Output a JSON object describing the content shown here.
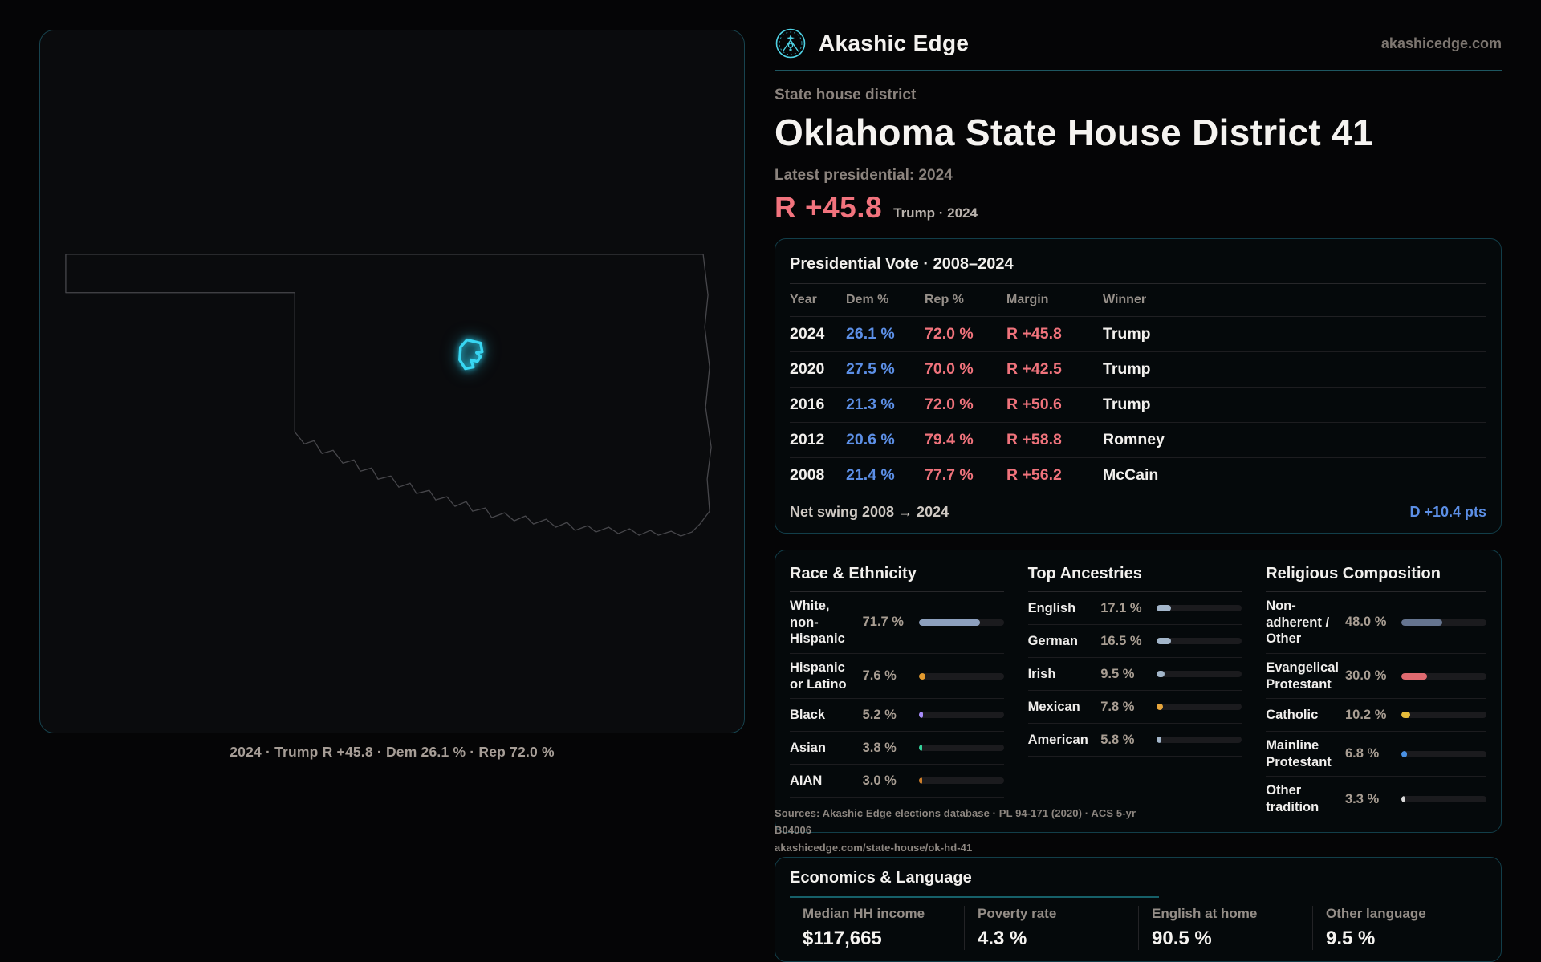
{
  "brand": {
    "name": "Akashic Edge",
    "domain": "akashicedge.com"
  },
  "header": {
    "kicker": "State house district",
    "title": "Oklahoma State House District 41",
    "latest": "Latest presidential: 2024",
    "margin": "R +45.8",
    "margin_detail": "Trump · 2024"
  },
  "map": {
    "caption": "2024 · Trump R +45.8 · Dem 26.1 % · Rep 72.0 %"
  },
  "vote_table": {
    "title": "Presidential Vote · 2008–2024",
    "columns": [
      "Year",
      "Dem %",
      "Rep %",
      "Margin",
      "Winner"
    ],
    "rows": [
      {
        "year": "2024",
        "dem": "26.1 %",
        "rep": "72.0 %",
        "margin": "R +45.8",
        "winner": "Trump"
      },
      {
        "year": "2020",
        "dem": "27.5 %",
        "rep": "70.0 %",
        "margin": "R +42.5",
        "winner": "Trump"
      },
      {
        "year": "2016",
        "dem": "21.3 %",
        "rep": "72.0 %",
        "margin": "R +50.6",
        "winner": "Trump"
      },
      {
        "year": "2012",
        "dem": "20.6 %",
        "rep": "79.4 %",
        "margin": "R +58.8",
        "winner": "Romney"
      },
      {
        "year": "2008",
        "dem": "21.4 %",
        "rep": "77.7 %",
        "margin": "R +56.2",
        "winner": "McCain"
      }
    ],
    "net_swing_label": "Net swing 2008 → 2024",
    "net_swing_value": "D +10.4 pts"
  },
  "demographics": [
    {
      "id": "race",
      "title": "Race & Ethnicity",
      "rows": [
        {
          "label": "White, non-Hispanic",
          "value": "71.7 %",
          "pct": 71.7,
          "color": "#8da0be"
        },
        {
          "label": "Hispanic or Latino",
          "value": "7.6 %",
          "pct": 7.6,
          "color": "#e39a2e"
        },
        {
          "label": "Black",
          "value": "5.2 %",
          "pct": 5.2,
          "color": "#a78bfa"
        },
        {
          "label": "Asian",
          "value": "3.8 %",
          "pct": 3.8,
          "color": "#34d39b"
        },
        {
          "label": "AIAN",
          "value": "3.0 %",
          "pct": 3.0,
          "color": "#cf7f2a"
        }
      ]
    },
    {
      "id": "ancestries",
      "title": "Top Ancestries",
      "rows": [
        {
          "label": "English",
          "value": "17.1 %",
          "pct": 17.1,
          "color": "#a3b6ca"
        },
        {
          "label": "German",
          "value": "16.5 %",
          "pct": 16.5,
          "color": "#a3b6ca"
        },
        {
          "label": "Irish",
          "value": "9.5 %",
          "pct": 9.5,
          "color": "#a3b6ca"
        },
        {
          "label": "Mexican",
          "value": "7.8 %",
          "pct": 7.8,
          "color": "#e8a63c"
        },
        {
          "label": "American",
          "value": "5.8 %",
          "pct": 5.8,
          "color": "#a3b6ca"
        }
      ]
    },
    {
      "id": "religion",
      "title": "Religious Composition",
      "rows": [
        {
          "label": "Non-adherent / Other",
          "value": "48.0 %",
          "pct": 48.0,
          "color": "#65748f"
        },
        {
          "label": "Evangelical Protestant",
          "value": "30.0 %",
          "pct": 30.0,
          "color": "#e06a70"
        },
        {
          "label": "Catholic",
          "value": "10.2 %",
          "pct": 10.2,
          "color": "#e6bb3a"
        },
        {
          "label": "Mainline Protestant",
          "value": "6.8 %",
          "pct": 6.8,
          "color": "#4a90e2"
        },
        {
          "label": "Other tradition",
          "value": "3.3 %",
          "pct": 3.3,
          "color": "#d9d9d9"
        }
      ]
    }
  ],
  "economics": {
    "title": "Economics & Language",
    "stats": [
      {
        "label": "Median HH income",
        "value": "$117,665"
      },
      {
        "label": "Poverty rate",
        "value": "4.3 %"
      },
      {
        "label": "English at home",
        "value": "90.5 %"
      },
      {
        "label": "Other language",
        "value": "9.5 %"
      }
    ]
  },
  "source": {
    "line1": "Sources: Akashic Edge elections database · PL 94-171 (2020) · ACS 5-yr B04006",
    "line2": "akashicedge.com/state-house/ok-hd-41"
  },
  "colors": {
    "accent_teal": "#4fd1e3",
    "dem_blue": "#5c8fe6",
    "rep_red": "#f0737c",
    "district_glow": "#38d6f2",
    "panel_border": "#123e49"
  }
}
